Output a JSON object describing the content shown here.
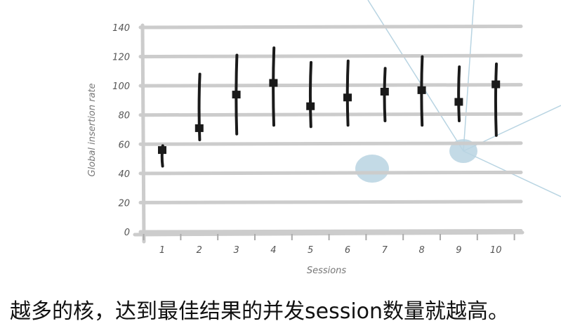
{
  "chart_data": {
    "type": "scatter",
    "xlabel": "Sessions",
    "ylabel": "Global insertion rate",
    "ylim": [
      0,
      140
    ],
    "yticks": [
      0,
      20,
      40,
      60,
      80,
      100,
      120,
      140
    ],
    "categories": [
      "1",
      "2",
      "3",
      "4",
      "5",
      "6",
      "7",
      "8",
      "9",
      "10"
    ],
    "values": [
      56,
      71,
      94,
      102,
      86,
      92,
      96,
      97,
      89,
      101
    ],
    "error_low": [
      45,
      63,
      67,
      73,
      72,
      73,
      76,
      73,
      76,
      66
    ],
    "error_high": [
      59,
      108,
      121,
      126,
      116,
      117,
      112,
      120,
      113,
      115
    ],
    "grid": true,
    "colors": {
      "marker": "#1a1a1a",
      "grid": "#cccccc",
      "overlay": "#b8d4e2"
    }
  },
  "caption": "越多的核，达到最佳结果的并发session数量就越高。"
}
